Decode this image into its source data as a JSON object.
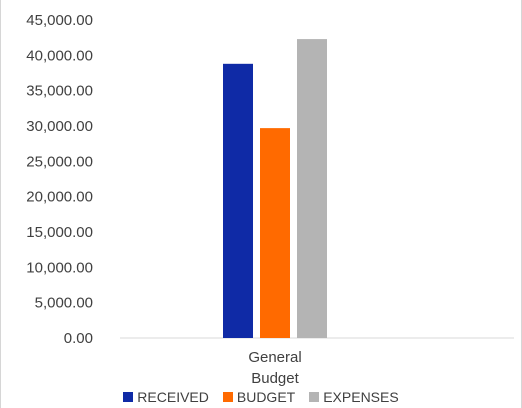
{
  "chart_data": {
    "type": "bar",
    "categories": [
      "General Budget"
    ],
    "category_lines": [
      "General",
      "Budget"
    ],
    "series": [
      {
        "name": "RECEIVED",
        "values": [
          38800
        ],
        "color": "#0f2aa6"
      },
      {
        "name": "BUDGET",
        "values": [
          29700
        ],
        "color": "#ff6a00"
      },
      {
        "name": "EXPENSES",
        "values": [
          42300
        ],
        "color": "#b4b4b4"
      }
    ],
    "yticks": [
      "0.00",
      "5,000.00",
      "10,000.00",
      "15,000.00",
      "20,000.00",
      "25,000.00",
      "30,000.00",
      "35,000.00",
      "40,000.00",
      "45,000.00"
    ],
    "ylim": [
      0,
      45000
    ],
    "grid": false,
    "legend_position": "bottom"
  }
}
